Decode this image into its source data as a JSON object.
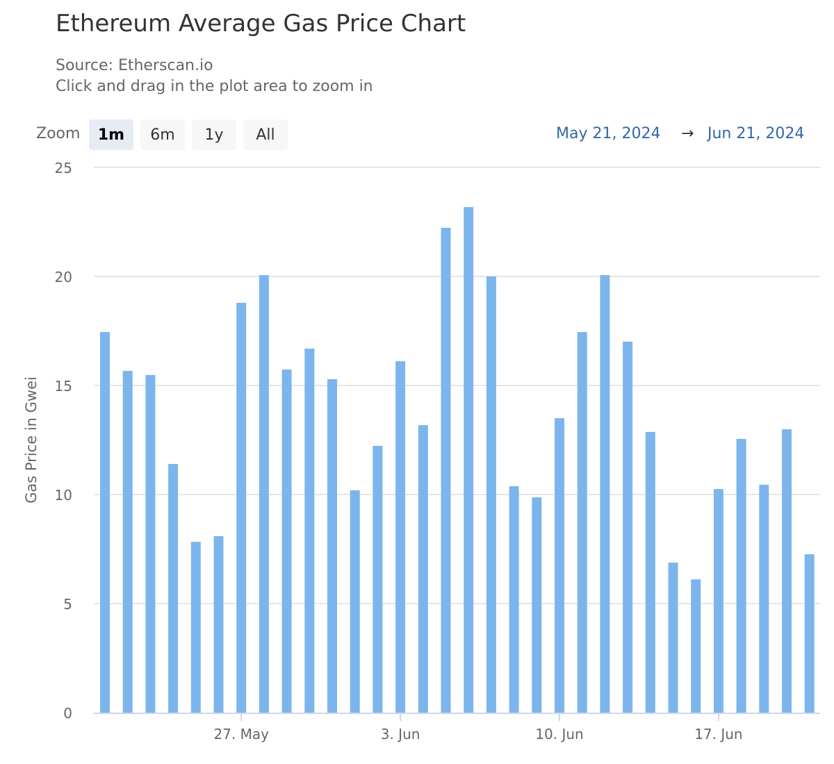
{
  "title": "Ethereum Average Gas Price Chart",
  "subtitle": [
    "Source: Etherscan.io",
    "Click and drag in the plot area to zoom in"
  ],
  "zoom": {
    "label": "Zoom",
    "buttons": [
      "1m",
      "6m",
      "1y",
      "All"
    ],
    "active": "1m"
  },
  "range": {
    "from": "May 21, 2024",
    "arrow": "→",
    "to": "Jun 21, 2024"
  },
  "colors": {
    "bar": "#7cb5ec",
    "range_text": "#3366aa"
  },
  "chart_data": {
    "type": "bar",
    "title": "Ethereum Average Gas Price Chart",
    "ylabel": "Gas Price in Gwei",
    "ylim": [
      0,
      25
    ],
    "yticks": [
      0,
      5,
      10,
      15,
      20,
      25
    ],
    "xtick_labels": [
      {
        "label": "27. May",
        "index": 6
      },
      {
        "label": "3. Jun",
        "index": 13
      },
      {
        "label": "10. Jun",
        "index": 20
      },
      {
        "label": "17. Jun",
        "index": 27
      }
    ],
    "grid": true,
    "categories": [
      "2024-05-21",
      "2024-05-22",
      "2024-05-23",
      "2024-05-24",
      "2024-05-25",
      "2024-05-26",
      "2024-05-27",
      "2024-05-28",
      "2024-05-29",
      "2024-05-30",
      "2024-05-31",
      "2024-06-01",
      "2024-06-02",
      "2024-06-03",
      "2024-06-04",
      "2024-06-05",
      "2024-06-06",
      "2024-06-07",
      "2024-06-08",
      "2024-06-09",
      "2024-06-10",
      "2024-06-11",
      "2024-06-12",
      "2024-06-13",
      "2024-06-14",
      "2024-06-15",
      "2024-06-16",
      "2024-06-17",
      "2024-06-18",
      "2024-06-19",
      "2024-06-20",
      "2024-06-21"
    ],
    "values": [
      17.45,
      15.67,
      15.48,
      11.4,
      7.83,
      8.09,
      18.79,
      20.06,
      15.73,
      16.69,
      15.29,
      10.19,
      12.23,
      16.11,
      13.18,
      22.23,
      23.18,
      20.0,
      10.38,
      9.87,
      13.5,
      17.45,
      20.06,
      17.01,
      12.87,
      6.88,
      6.11,
      10.25,
      12.55,
      10.45,
      12.99,
      7.26
    ]
  }
}
